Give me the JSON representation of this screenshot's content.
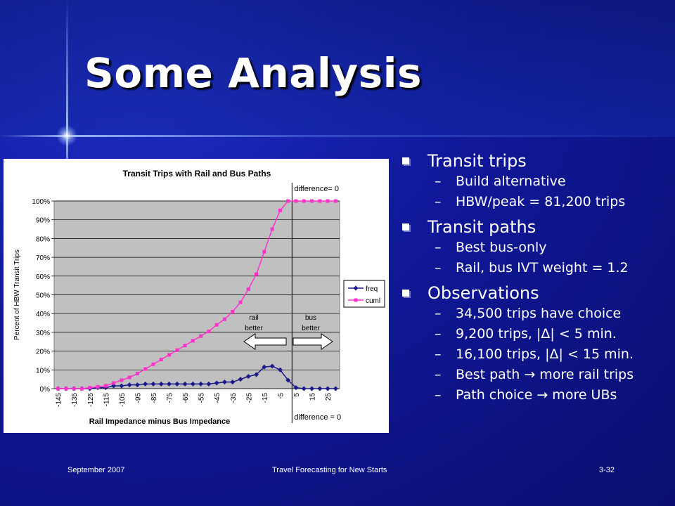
{
  "slide": {
    "title": "Some Analysis",
    "footer": {
      "date": "September  2007",
      "center": "Travel Forecasting for New Starts",
      "page": "3-32"
    }
  },
  "bullets": [
    {
      "label": "Transit trips",
      "subs": [
        "Build alternative",
        "HBW/peak = 81,200 trips"
      ]
    },
    {
      "label": "Transit paths",
      "subs": [
        "Best bus-only",
        "Rail, bus IVT weight = 1.2"
      ]
    },
    {
      "label": "Observations",
      "subs": [
        "34,500 trips have choice",
        "9,200 trips,  |Δ| < 5 min.",
        "16,100 trips, |Δ| < 15 min.",
        "Best path  → more rail trips",
        "Path choice  → more UBs"
      ]
    }
  ],
  "chart_data": {
    "type": "line",
    "title": "Transit Trips with Rail and Bus Paths",
    "xlabel": "Rail Impedance minus Bus Impedance",
    "ylabel": "Percent of HBW Transit Trips",
    "ylim": [
      0,
      1
    ],
    "y_tick_labels": [
      "0%",
      "10%",
      "20%",
      "30%",
      "40%",
      "50%",
      "60%",
      "70%",
      "80%",
      "90%",
      "100%"
    ],
    "x": [
      -145,
      -140,
      -135,
      -130,
      -125,
      -120,
      -115,
      -110,
      -105,
      -100,
      -95,
      -90,
      -85,
      -80,
      -75,
      -70,
      -65,
      -60,
      -55,
      -50,
      -45,
      -40,
      -35,
      -30,
      -25,
      -20,
      -15,
      -10,
      -5,
      0,
      5,
      10,
      15,
      20,
      25,
      30
    ],
    "x_tick_labels": [
      "-145",
      "-135",
      "-125",
      "-115",
      "-105",
      "-95",
      "-85",
      "-75",
      "-65",
      "-55",
      "-45",
      "-35",
      "-25",
      "-15",
      "-5",
      "5",
      "15",
      "25"
    ],
    "x_tick_values": [
      -145,
      -135,
      -125,
      -115,
      -105,
      -95,
      -85,
      -75,
      -65,
      -55,
      -45,
      -35,
      -25,
      -15,
      -5,
      5,
      15,
      25
    ],
    "series": [
      {
        "name": "freq",
        "color": "#1a1a8c",
        "marker": "diamond",
        "values": [
          0,
          0,
          0,
          0,
          0,
          0.005,
          0.005,
          0.015,
          0.015,
          0.02,
          0.02,
          0.025,
          0.025,
          0.025,
          0.025,
          0.025,
          0.025,
          0.025,
          0.025,
          0.025,
          0.03,
          0.035,
          0.035,
          0.05,
          0.065,
          0.075,
          0.115,
          0.12,
          0.1,
          0.045,
          0.005,
          0,
          0,
          0,
          0,
          0
        ]
      },
      {
        "name": "cuml",
        "color": "#ff33cc",
        "marker": "square",
        "values": [
          0,
          0,
          0,
          0,
          0.005,
          0.01,
          0.015,
          0.03,
          0.045,
          0.06,
          0.08,
          0.105,
          0.13,
          0.155,
          0.18,
          0.205,
          0.23,
          0.255,
          0.28,
          0.305,
          0.34,
          0.37,
          0.41,
          0.46,
          0.53,
          0.61,
          0.73,
          0.85,
          0.95,
          1.0,
          1.0,
          1.0,
          1.0,
          1.0,
          1.0,
          1.0
        ]
      }
    ],
    "annotations": {
      "top": "difference= 0",
      "bottom": "difference = 0",
      "left": "rail better",
      "right": "bus better"
    },
    "legend_position": "right",
    "plot_background": "#c0c0c0"
  }
}
